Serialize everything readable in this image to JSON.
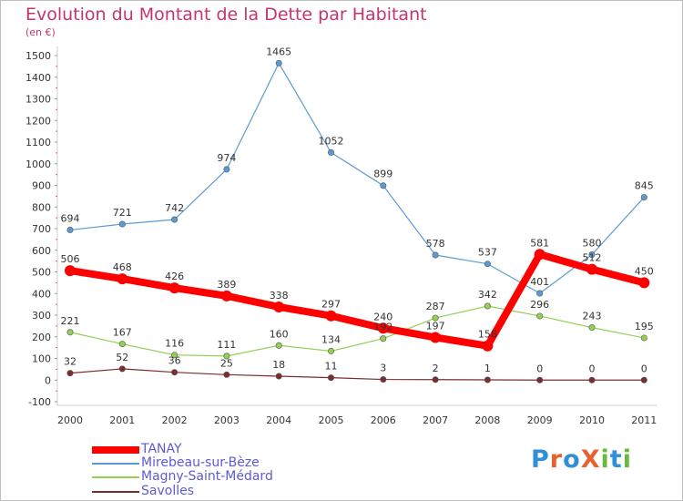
{
  "title": "Evolution du Montant de la Dette par Habitant",
  "subtitle": "(en €)",
  "logo": {
    "text": "ProXiti",
    "colors": [
      "#2f8fd8",
      "#e8602c",
      "#2f8fd8",
      "#e8602c",
      "#67b93f",
      "#2f8fd8",
      "#67b93f"
    ]
  },
  "chart_data": {
    "type": "line",
    "x": [
      "2000",
      "2001",
      "2002",
      "2003",
      "2004",
      "2005",
      "2006",
      "2007",
      "2008",
      "2009",
      "2010",
      "2011"
    ],
    "ylim": [
      -100,
      1500
    ],
    "yticks": [
      -100,
      0,
      100,
      200,
      300,
      400,
      500,
      600,
      700,
      800,
      900,
      1000,
      1100,
      1200,
      1300,
      1400,
      1500
    ],
    "grid": false,
    "legend_position": "bottom-left",
    "series": [
      {
        "name": "TANAY",
        "color": "#ff0000",
        "values": [
          506,
          468,
          426,
          389,
          338,
          297,
          240,
          197,
          158,
          581,
          512,
          450
        ]
      },
      {
        "name": "Mirebeau-sur-Bèze",
        "color": "#5b9bd5",
        "values": [
          694,
          721,
          742,
          974,
          1465,
          1052,
          899,
          578,
          537,
          401,
          580,
          845
        ]
      },
      {
        "name": "Magny-Saint-Médard",
        "color": "#92d050",
        "values": [
          221,
          167,
          116,
          111,
          160,
          134,
          192,
          287,
          342,
          296,
          243,
          195
        ]
      },
      {
        "name": "Savolles",
        "color": "#7b2c2c",
        "values": [
          32,
          52,
          36,
          25,
          18,
          11,
          3,
          2,
          1,
          0,
          0,
          0
        ]
      }
    ]
  }
}
